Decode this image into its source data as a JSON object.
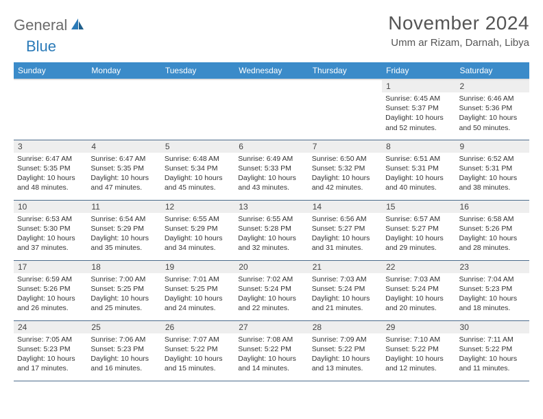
{
  "logo": {
    "general": "General",
    "blue": "Blue"
  },
  "title": "November 2024",
  "location": "Umm ar Rizam, Darnah, Libya",
  "colors": {
    "header_bg": "#3b8bc9",
    "header_text": "#ffffff",
    "daynum_bg": "#eeeeee",
    "body_text": "#333333",
    "divider": "#4a6a8a",
    "logo_gray": "#6b6b6b",
    "logo_blue": "#2a7ab8"
  },
  "weekdays": [
    "Sunday",
    "Monday",
    "Tuesday",
    "Wednesday",
    "Thursday",
    "Friday",
    "Saturday"
  ],
  "weeks": [
    [
      {
        "n": "",
        "sr": "",
        "ss": "",
        "dl": ""
      },
      {
        "n": "",
        "sr": "",
        "ss": "",
        "dl": ""
      },
      {
        "n": "",
        "sr": "",
        "ss": "",
        "dl": ""
      },
      {
        "n": "",
        "sr": "",
        "ss": "",
        "dl": ""
      },
      {
        "n": "",
        "sr": "",
        "ss": "",
        "dl": ""
      },
      {
        "n": "1",
        "sr": "Sunrise: 6:45 AM",
        "ss": "Sunset: 5:37 PM",
        "dl": "Daylight: 10 hours and 52 minutes."
      },
      {
        "n": "2",
        "sr": "Sunrise: 6:46 AM",
        "ss": "Sunset: 5:36 PM",
        "dl": "Daylight: 10 hours and 50 minutes."
      }
    ],
    [
      {
        "n": "3",
        "sr": "Sunrise: 6:47 AM",
        "ss": "Sunset: 5:35 PM",
        "dl": "Daylight: 10 hours and 48 minutes."
      },
      {
        "n": "4",
        "sr": "Sunrise: 6:47 AM",
        "ss": "Sunset: 5:35 PM",
        "dl": "Daylight: 10 hours and 47 minutes."
      },
      {
        "n": "5",
        "sr": "Sunrise: 6:48 AM",
        "ss": "Sunset: 5:34 PM",
        "dl": "Daylight: 10 hours and 45 minutes."
      },
      {
        "n": "6",
        "sr": "Sunrise: 6:49 AM",
        "ss": "Sunset: 5:33 PM",
        "dl": "Daylight: 10 hours and 43 minutes."
      },
      {
        "n": "7",
        "sr": "Sunrise: 6:50 AM",
        "ss": "Sunset: 5:32 PM",
        "dl": "Daylight: 10 hours and 42 minutes."
      },
      {
        "n": "8",
        "sr": "Sunrise: 6:51 AM",
        "ss": "Sunset: 5:31 PM",
        "dl": "Daylight: 10 hours and 40 minutes."
      },
      {
        "n": "9",
        "sr": "Sunrise: 6:52 AM",
        "ss": "Sunset: 5:31 PM",
        "dl": "Daylight: 10 hours and 38 minutes."
      }
    ],
    [
      {
        "n": "10",
        "sr": "Sunrise: 6:53 AM",
        "ss": "Sunset: 5:30 PM",
        "dl": "Daylight: 10 hours and 37 minutes."
      },
      {
        "n": "11",
        "sr": "Sunrise: 6:54 AM",
        "ss": "Sunset: 5:29 PM",
        "dl": "Daylight: 10 hours and 35 minutes."
      },
      {
        "n": "12",
        "sr": "Sunrise: 6:55 AM",
        "ss": "Sunset: 5:29 PM",
        "dl": "Daylight: 10 hours and 34 minutes."
      },
      {
        "n": "13",
        "sr": "Sunrise: 6:55 AM",
        "ss": "Sunset: 5:28 PM",
        "dl": "Daylight: 10 hours and 32 minutes."
      },
      {
        "n": "14",
        "sr": "Sunrise: 6:56 AM",
        "ss": "Sunset: 5:27 PM",
        "dl": "Daylight: 10 hours and 31 minutes."
      },
      {
        "n": "15",
        "sr": "Sunrise: 6:57 AM",
        "ss": "Sunset: 5:27 PM",
        "dl": "Daylight: 10 hours and 29 minutes."
      },
      {
        "n": "16",
        "sr": "Sunrise: 6:58 AM",
        "ss": "Sunset: 5:26 PM",
        "dl": "Daylight: 10 hours and 28 minutes."
      }
    ],
    [
      {
        "n": "17",
        "sr": "Sunrise: 6:59 AM",
        "ss": "Sunset: 5:26 PM",
        "dl": "Daylight: 10 hours and 26 minutes."
      },
      {
        "n": "18",
        "sr": "Sunrise: 7:00 AM",
        "ss": "Sunset: 5:25 PM",
        "dl": "Daylight: 10 hours and 25 minutes."
      },
      {
        "n": "19",
        "sr": "Sunrise: 7:01 AM",
        "ss": "Sunset: 5:25 PM",
        "dl": "Daylight: 10 hours and 24 minutes."
      },
      {
        "n": "20",
        "sr": "Sunrise: 7:02 AM",
        "ss": "Sunset: 5:24 PM",
        "dl": "Daylight: 10 hours and 22 minutes."
      },
      {
        "n": "21",
        "sr": "Sunrise: 7:03 AM",
        "ss": "Sunset: 5:24 PM",
        "dl": "Daylight: 10 hours and 21 minutes."
      },
      {
        "n": "22",
        "sr": "Sunrise: 7:03 AM",
        "ss": "Sunset: 5:24 PM",
        "dl": "Daylight: 10 hours and 20 minutes."
      },
      {
        "n": "23",
        "sr": "Sunrise: 7:04 AM",
        "ss": "Sunset: 5:23 PM",
        "dl": "Daylight: 10 hours and 18 minutes."
      }
    ],
    [
      {
        "n": "24",
        "sr": "Sunrise: 7:05 AM",
        "ss": "Sunset: 5:23 PM",
        "dl": "Daylight: 10 hours and 17 minutes."
      },
      {
        "n": "25",
        "sr": "Sunrise: 7:06 AM",
        "ss": "Sunset: 5:23 PM",
        "dl": "Daylight: 10 hours and 16 minutes."
      },
      {
        "n": "26",
        "sr": "Sunrise: 7:07 AM",
        "ss": "Sunset: 5:22 PM",
        "dl": "Daylight: 10 hours and 15 minutes."
      },
      {
        "n": "27",
        "sr": "Sunrise: 7:08 AM",
        "ss": "Sunset: 5:22 PM",
        "dl": "Daylight: 10 hours and 14 minutes."
      },
      {
        "n": "28",
        "sr": "Sunrise: 7:09 AM",
        "ss": "Sunset: 5:22 PM",
        "dl": "Daylight: 10 hours and 13 minutes."
      },
      {
        "n": "29",
        "sr": "Sunrise: 7:10 AM",
        "ss": "Sunset: 5:22 PM",
        "dl": "Daylight: 10 hours and 12 minutes."
      },
      {
        "n": "30",
        "sr": "Sunrise: 7:11 AM",
        "ss": "Sunset: 5:22 PM",
        "dl": "Daylight: 10 hours and 11 minutes."
      }
    ]
  ]
}
